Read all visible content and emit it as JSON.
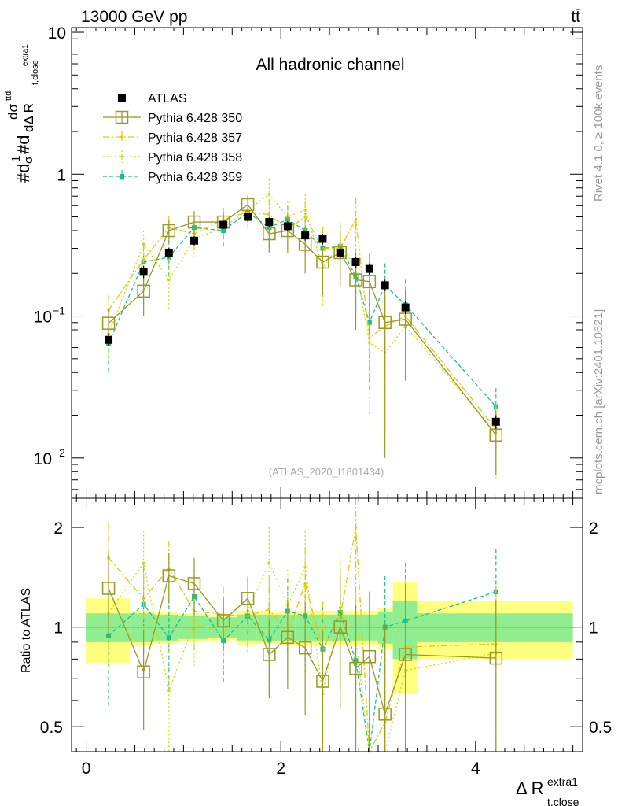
{
  "header": {
    "energy_label": "13000 GeV pp",
    "process_label": "tt̄",
    "rivet_label": "Rivet 4.1.0, ≥ 100k events",
    "source_label": "mcplots.cern.ch [arXiv:2401.10621]",
    "analysis_label": "(ATLAS_2020_I1801434)"
  },
  "chart_data": {
    "type": "line",
    "title": "All hadronic channel",
    "ylabel_parts": {
      "lead": "#d",
      "one": "1",
      "sigma": "σ",
      "hash_d": "#d",
      "dsigma_top": "dσ",
      "sup": "ttd",
      "bottom": "dΔ R",
      "sub_close": "t,close",
      "sup_extra": "extra1"
    },
    "xlabel_parts": {
      "main": "Δ R",
      "sub": "t,close",
      "sup": "extra1"
    },
    "ratio_ylabel": "Ratio to ATLAS",
    "xlim": [
      -0.15,
      5.1
    ],
    "ylim": [
      0.0052,
      10.8
    ],
    "ratio_ylim": [
      0.42,
      2.45
    ],
    "x_ticks": [
      0,
      2,
      4
    ],
    "x_tick_labels": [
      "0",
      "2",
      "4"
    ],
    "y_ticks": [
      0.01,
      0.1,
      1,
      10
    ],
    "y_tick_labels": [
      {
        "base": "10",
        "exp": "−2"
      },
      {
        "base": "10",
        "exp": "−1"
      },
      {
        "base": "1",
        "exp": ""
      },
      {
        "base": "10",
        "exp": ""
      }
    ],
    "ratio_ticks": [
      0.5,
      1,
      2
    ],
    "ratio_tick_labels": [
      "0.5",
      "1",
      "2"
    ],
    "ref_bins": [
      {
        "lo": 0.0,
        "hi": 0.45,
        "y": 0.068,
        "err": 0.22,
        "inner": 0.1
      },
      {
        "lo": 0.45,
        "hi": 0.7,
        "y": 0.205,
        "err": 0.12,
        "inner": 0.1
      },
      {
        "lo": 0.7,
        "hi": 0.95,
        "y": 0.28,
        "err": 0.11,
        "inner": 0.09
      },
      {
        "lo": 0.95,
        "hi": 1.25,
        "y": 0.34,
        "err": 0.1,
        "inner": 0.08
      },
      {
        "lo": 1.25,
        "hi": 1.55,
        "y": 0.44,
        "err": 0.09,
        "inner": 0.07
      },
      {
        "lo": 1.55,
        "hi": 1.75,
        "y": 0.5,
        "err": 0.12,
        "inner": 0.09
      },
      {
        "lo": 1.75,
        "hi": 2.0,
        "y": 0.46,
        "err": 0.11,
        "inner": 0.09
      },
      {
        "lo": 2.0,
        "hi": 2.15,
        "y": 0.43,
        "err": 0.12,
        "inner": 0.09
      },
      {
        "lo": 2.15,
        "hi": 2.35,
        "y": 0.37,
        "err": 0.12,
        "inner": 0.09
      },
      {
        "lo": 2.35,
        "hi": 2.5,
        "y": 0.35,
        "err": 0.12,
        "inner": 0.09
      },
      {
        "lo": 2.5,
        "hi": 2.7,
        "y": 0.28,
        "err": 0.12,
        "inner": 0.09
      },
      {
        "lo": 2.7,
        "hi": 2.85,
        "y": 0.24,
        "err": 0.12,
        "inner": 0.09
      },
      {
        "lo": 2.85,
        "hi": 3.0,
        "y": 0.215,
        "err": 0.12,
        "inner": 0.09
      },
      {
        "lo": 3.0,
        "hi": 3.15,
        "y": 0.165,
        "err": 0.14,
        "inner": 0.11
      },
      {
        "lo": 3.15,
        "hi": 3.4,
        "y": 0.115,
        "err": 0.37,
        "inner": 0.2
      },
      {
        "lo": 3.4,
        "hi": 5.0,
        "y": 0.018,
        "err": 0.2,
        "inner": 0.1
      }
    ],
    "data_x": [
      0.23,
      0.59,
      0.85,
      1.11,
      1.41,
      1.66,
      1.88,
      2.07,
      2.25,
      2.43,
      2.61,
      2.77,
      2.91,
      3.07,
      3.28,
      4.21
    ],
    "series": [
      {
        "name": "ATLAS",
        "marker": "filled-square",
        "color": "#000000",
        "values": [
          0.068,
          0.205,
          0.28,
          0.34,
          0.44,
          0.5,
          0.46,
          0.43,
          0.37,
          0.35,
          0.28,
          0.24,
          0.215,
          0.165,
          0.115,
          0.018
        ],
        "err": [
          0.007,
          0.02,
          0.022,
          0.025,
          0.03,
          0.035,
          0.035,
          0.035,
          0.03,
          0.03,
          0.025,
          0.02,
          0.02,
          0.015,
          0.012,
          0.002
        ]
      },
      {
        "name": "Pythia 6.428 350",
        "marker": "open-square",
        "color": "#999922",
        "dash": "",
        "values": [
          0.089,
          0.15,
          0.4,
          0.46,
          0.46,
          0.61,
          0.38,
          0.4,
          0.32,
          0.24,
          0.28,
          0.18,
          0.175,
          0.09,
          0.095,
          0.0145
        ],
        "err": [
          0.025,
          0.05,
          0.07,
          0.09,
          0.08,
          0.1,
          0.1,
          0.12,
          0.12,
          0.1,
          0.12,
          0.1,
          0.1,
          0.08,
          0.06,
          0.007
        ]
      },
      {
        "name": "Pythia 6.428 357",
        "marker": "dot",
        "color": "#e5c900",
        "dash": "8,3,2,3",
        "values": [
          0.11,
          0.25,
          0.42,
          0.38,
          0.48,
          0.54,
          0.52,
          0.41,
          0.5,
          0.3,
          0.3,
          0.48,
          0.07,
          0.085,
          0.1,
          0.016
        ],
        "err": [
          0.03,
          0.07,
          0.09,
          0.09,
          0.1,
          0.12,
          0.14,
          0.12,
          0.14,
          0.12,
          0.12,
          0.2,
          0.04,
          0.05,
          0.06,
          0.008
        ]
      },
      {
        "name": "Pythia 6.428 358",
        "marker": "dot",
        "color": "#c8e000",
        "dash": "2,3",
        "values": [
          0.075,
          0.32,
          0.18,
          0.35,
          0.42,
          0.56,
          0.72,
          0.5,
          0.56,
          0.22,
          0.32,
          0.22,
          0.065,
          0.055,
          0.085,
          0.015
        ],
        "err": [
          0.025,
          0.08,
          0.07,
          0.09,
          0.1,
          0.14,
          0.2,
          0.14,
          0.16,
          0.1,
          0.14,
          0.1,
          0.045,
          0.04,
          0.05,
          0.008
        ]
      },
      {
        "name": "Pythia 6.428 359",
        "marker": "small-square",
        "color": "#19c18a",
        "dash": "5,3",
        "values": [
          0.064,
          0.24,
          0.26,
          0.42,
          0.4,
          0.54,
          0.42,
          0.48,
          0.4,
          0.3,
          0.31,
          0.19,
          0.09,
          0.165,
          0.12,
          0.023
        ],
        "err": [
          0.025,
          0.07,
          0.08,
          0.09,
          0.1,
          0.12,
          0.12,
          0.12,
          0.13,
          0.12,
          0.13,
          0.09,
          0.06,
          0.07,
          0.06,
          0.008
        ]
      }
    ]
  },
  "colors": {
    "yellow_band": "#ffff80",
    "green_band": "#90ee90",
    "axis": "#000000",
    "gray_text": "#999999"
  }
}
